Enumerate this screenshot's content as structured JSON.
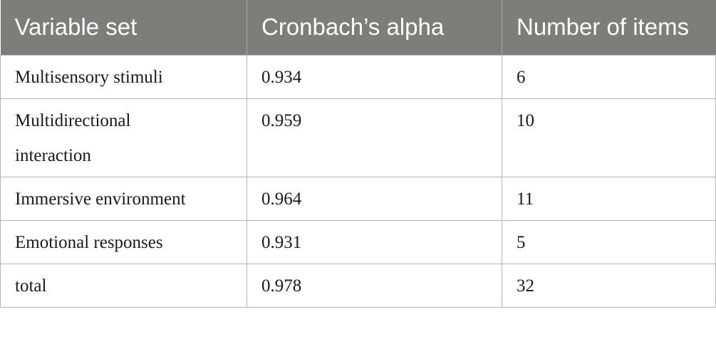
{
  "table": {
    "headers": [
      "Variable set",
      "Cronbach’s alpha",
      "Number of items"
    ],
    "rows": [
      {
        "variable_set": "Multisensory stimuli",
        "cronbach_alpha": "0.934",
        "number_of_items": "6"
      },
      {
        "variable_set": "Multidirectional interaction",
        "cronbach_alpha": "0.959",
        "number_of_items": "10"
      },
      {
        "variable_set": "Immersive environment",
        "cronbach_alpha": "0.964",
        "number_of_items": "11"
      },
      {
        "variable_set": "Emotional responses",
        "cronbach_alpha": "0.931",
        "number_of_items": "5"
      },
      {
        "variable_set": "total",
        "cronbach_alpha": "0.978",
        "number_of_items": "32"
      }
    ]
  },
  "colors": {
    "header_background": "#7d7d7a",
    "header_text": "#ffffff",
    "border": "#b5b5b5"
  }
}
